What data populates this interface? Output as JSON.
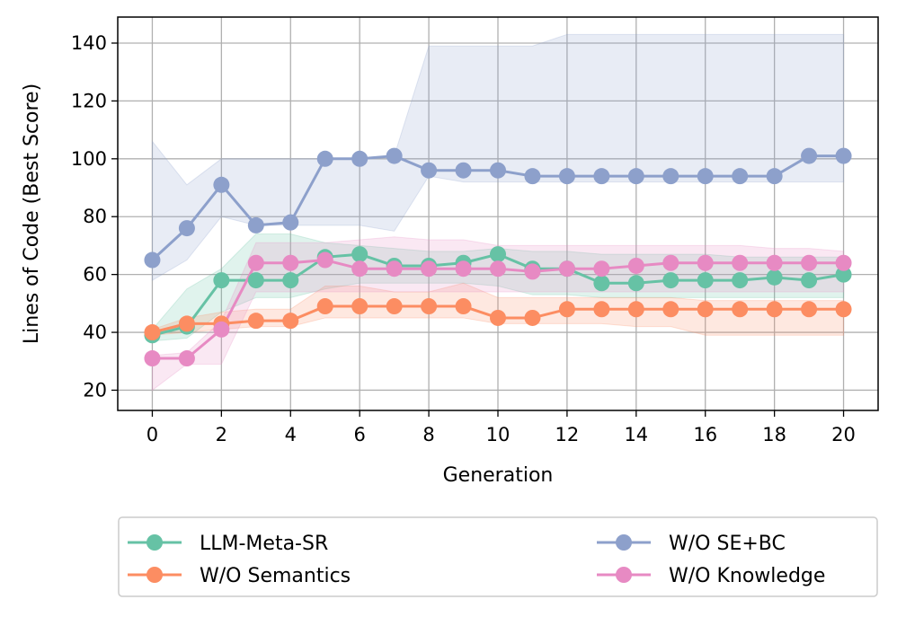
{
  "chart_data": {
    "type": "line",
    "title": "",
    "xlabel": "Generation",
    "ylabel": "Lines of Code (Best Score)",
    "xlim": [
      -1,
      21
    ],
    "ylim": [
      13,
      149
    ],
    "xticks": [
      0,
      2,
      4,
      6,
      8,
      10,
      12,
      14,
      16,
      18,
      20
    ],
    "yticks": [
      20,
      40,
      60,
      80,
      100,
      120,
      140
    ],
    "grid": true,
    "legend_position": "below",
    "x": [
      0,
      1,
      2,
      3,
      4,
      5,
      6,
      7,
      8,
      9,
      10,
      11,
      12,
      13,
      14,
      15,
      16,
      17,
      18,
      19,
      20
    ],
    "series": [
      {
        "name": "LLM-Meta-SR",
        "color": "#66c2a5",
        "values": [
          39,
          42,
          58,
          58,
          58,
          66,
          67,
          63,
          63,
          64,
          67,
          62,
          62,
          57,
          57,
          58,
          58,
          58,
          59,
          58,
          60
        ],
        "upper": [
          41,
          55,
          62,
          74,
          74,
          71,
          70,
          69,
          68,
          68,
          69,
          68,
          68,
          67,
          67,
          67,
          67,
          66,
          66,
          66,
          66
        ],
        "lower": [
          37,
          38,
          47,
          52,
          52,
          55,
          57,
          57,
          57,
          57,
          56,
          53,
          53,
          52,
          52,
          52,
          52,
          52,
          52,
          52,
          52
        ]
      },
      {
        "name": "W/O Semantics",
        "color": "#fc8d62",
        "values": [
          40,
          43,
          43,
          44,
          44,
          49,
          49,
          49,
          49,
          49,
          45,
          45,
          48,
          48,
          48,
          48,
          48,
          48,
          48,
          48,
          48
        ],
        "upper": [
          41,
          45,
          47,
          48,
          48,
          56,
          56,
          54,
          54,
          57,
          52,
          52,
          52,
          52,
          52,
          52,
          51,
          51,
          51,
          51,
          51
        ],
        "lower": [
          39,
          40,
          41,
          42,
          42,
          45,
          45,
          45,
          45,
          45,
          43,
          43,
          43,
          43,
          42,
          42,
          39,
          39,
          39,
          39,
          39
        ]
      },
      {
        "name": "W/O SE+BC",
        "color": "#8da0cb",
        "values": [
          65,
          76,
          91,
          77,
          78,
          100,
          100,
          101,
          96,
          96,
          96,
          94,
          94,
          94,
          94,
          94,
          94,
          94,
          94,
          101,
          101
        ],
        "upper": [
          106,
          91,
          100,
          100,
          100,
          100,
          100,
          101,
          139,
          139,
          139,
          139,
          143,
          143,
          143,
          143,
          143,
          143,
          143,
          143,
          143
        ],
        "lower": [
          58,
          65,
          80,
          77,
          77,
          77,
          77,
          75,
          94,
          92,
          92,
          92,
          92,
          92,
          92,
          92,
          92,
          92,
          92,
          92,
          92
        ]
      },
      {
        "name": "W/O Knowledge",
        "color": "#e78ac3",
        "values": [
          31,
          31,
          41,
          64,
          64,
          65,
          62,
          62,
          62,
          62,
          62,
          61,
          62,
          62,
          63,
          64,
          64,
          64,
          64,
          64,
          64
        ],
        "upper": [
          32,
          33,
          44,
          71,
          71,
          71,
          72,
          73,
          72,
          72,
          70,
          70,
          70,
          70,
          70,
          70,
          70,
          70,
          69,
          69,
          68
        ],
        "lower": [
          20,
          29,
          29,
          54,
          54,
          54,
          54,
          54,
          54,
          54,
          54,
          54,
          54,
          54,
          54,
          54,
          54,
          54,
          54,
          54,
          54
        ]
      }
    ]
  }
}
